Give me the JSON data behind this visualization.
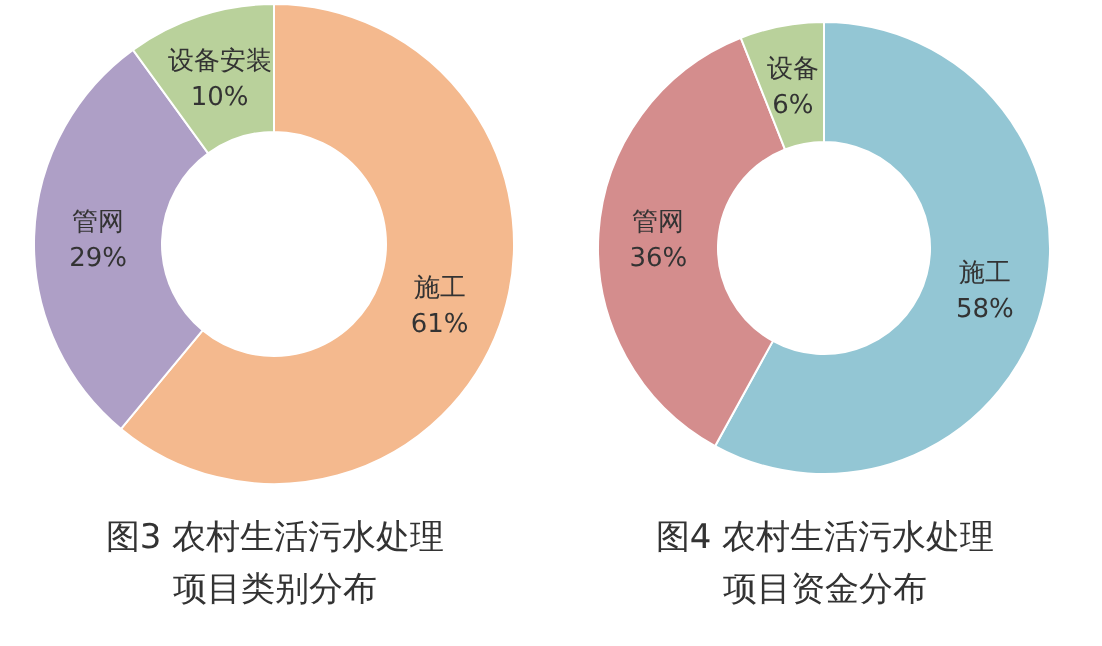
{
  "chart_data": [
    {
      "type": "donut",
      "title": "图3 农村生活污水处理项目类别分布",
      "categories": [
        "施工",
        "管网",
        "设备安装"
      ],
      "values": [
        61,
        29,
        10
      ],
      "value_labels": [
        "61%",
        "29%",
        "10%"
      ],
      "colors": [
        "#f4b98e",
        "#ae9fc6",
        "#b9d19b"
      ],
      "legend": false
    },
    {
      "type": "donut",
      "title": "图4 农村生活污水处理项目资金分布",
      "categories": [
        "施工",
        "管网",
        "设备"
      ],
      "values": [
        58,
        36,
        6
      ],
      "value_labels": [
        "58%",
        "36%",
        "6%"
      ],
      "colors": [
        "#93c6d4",
        "#d48d8d",
        "#b9d19b"
      ],
      "legend": false
    }
  ]
}
